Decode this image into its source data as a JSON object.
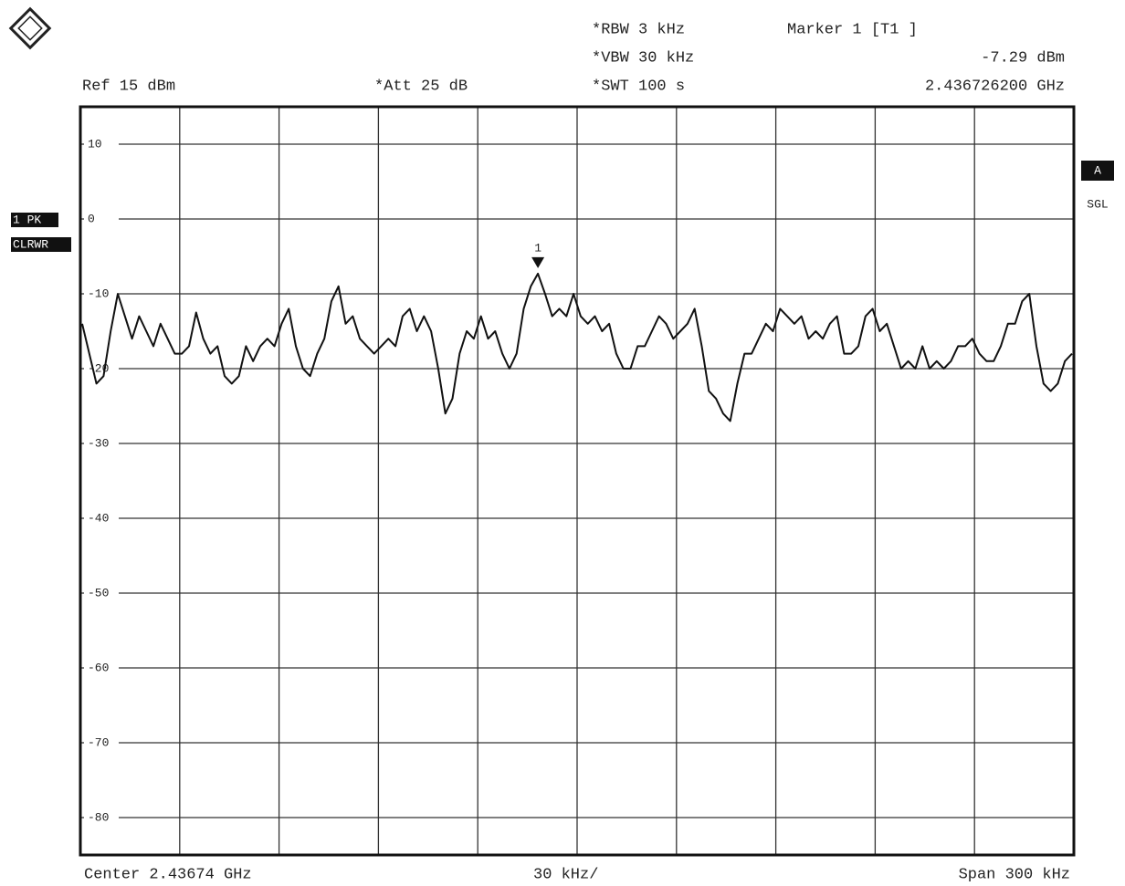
{
  "chart_data": {
    "type": "line",
    "header": {
      "ref": "Ref 15 dBm",
      "att": "*Att 25 dB",
      "rbw": "*RBW 3 kHz",
      "vbw": "*VBW 30 kHz",
      "swt": "*SWT 100 s"
    },
    "marker": {
      "name": "Marker 1 [T1 ]",
      "level": "-7.29 dBm",
      "frequency": "2.436726200 GHz",
      "label": "1"
    },
    "footer": {
      "center": "Center 2.43674 GHz",
      "division": "30 kHz/",
      "span": "Span 300 kHz"
    },
    "side_labels": {
      "detector": "1 PK",
      "mode": "CLRWR",
      "trace": "A",
      "sweep": "SGL"
    },
    "ylim": [
      -85,
      15
    ],
    "yticks": [
      10,
      0,
      -10,
      -20,
      -30,
      -40,
      -50,
      -60,
      -70,
      -80
    ],
    "grid": true,
    "color": "#111111",
    "values": [
      -14,
      -18,
      -22,
      -21,
      -15,
      -10,
      -13,
      -16,
      -13,
      -15,
      -17,
      -14,
      -16,
      -18,
      -18,
      -17,
      -12.5,
      -16,
      -18,
      -17,
      -21,
      -22,
      -21,
      -17,
      -19,
      -17,
      -16,
      -17,
      -14,
      -12,
      -17,
      -20,
      -21,
      -18,
      -16,
      -11,
      -9,
      -14,
      -13,
      -16,
      -17,
      -18,
      -17,
      -16,
      -17,
      -13,
      -12,
      -15,
      -13,
      -15,
      -20,
      -26,
      -24,
      -18,
      -15,
      -16,
      -13,
      -16,
      -15,
      -18,
      -20,
      -18,
      -12,
      -9,
      -7.3,
      -10,
      -13,
      -12,
      -13,
      -10,
      -13,
      -14,
      -13,
      -15,
      -14,
      -18,
      -20,
      -20,
      -17,
      -17,
      -15,
      -13,
      -14,
      -16,
      -15,
      -14,
      -12,
      -17,
      -23,
      -24,
      -26,
      -27,
      -22,
      -18,
      -18,
      -16,
      -14,
      -15,
      -12,
      -13,
      -14,
      -13,
      -16,
      -15,
      -16,
      -14,
      -13,
      -18,
      -18,
      -17,
      -13,
      -12,
      -15,
      -14,
      -17,
      -20,
      -19,
      -20,
      -17,
      -20,
      -19,
      -20,
      -19,
      -17,
      -17,
      -16,
      -18,
      -19,
      -19,
      -17,
      -14,
      -14,
      -11,
      -10,
      -17,
      -22,
      -23,
      -22,
      -19,
      -18
    ]
  }
}
